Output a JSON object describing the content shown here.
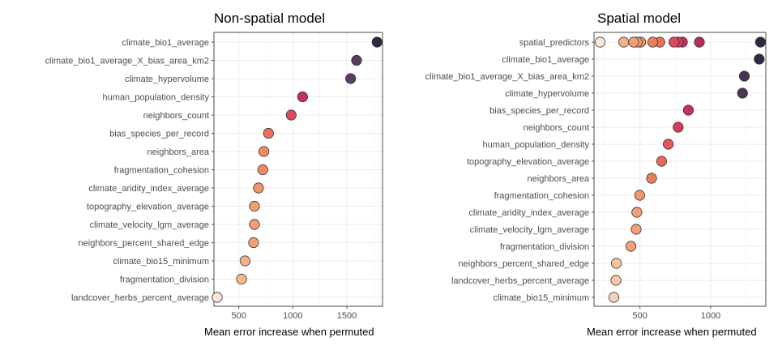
{
  "chart_data": [
    {
      "type": "scatter",
      "title": "Non-spatial model",
      "xlabel": "Mean error increase when permuted",
      "xlim": [
        270,
        1830
      ],
      "xticks": [
        500,
        1000,
        1500
      ],
      "grid": true,
      "legend": "none",
      "categories": [
        "climate_bio1_average",
        "climate_bio1_average_X_bias_area_km2",
        "climate_hypervolume",
        "human_population_density",
        "neighbors_count",
        "bias_species_per_record",
        "neighbors_area",
        "fragmentation_cohesion",
        "climate_aridity_index_average",
        "topography_elevation_average",
        "climate_velocity_lgm_average",
        "neighbors_percent_shared_edge",
        "climate_bio15_minimum",
        "fragmentation_division",
        "landcover_herbs_percent_average"
      ],
      "points": [
        {
          "y": "climate_bio1_average",
          "x": 1780,
          "color": "#2b2a3f"
        },
        {
          "y": "climate_bio1_average_X_bias_area_km2",
          "x": 1590,
          "color": "#583d63"
        },
        {
          "y": "climate_hypervolume",
          "x": 1535,
          "color": "#5a3d66"
        },
        {
          "y": "human_population_density",
          "x": 1090,
          "color": "#c4305a"
        },
        {
          "y": "neighbors_count",
          "x": 985,
          "color": "#dd4a5c"
        },
        {
          "y": "bias_species_per_record",
          "x": 775,
          "color": "#ea7257"
        },
        {
          "y": "neighbors_area",
          "x": 732,
          "color": "#ef8a63"
        },
        {
          "y": "fragmentation_cohesion",
          "x": 722,
          "color": "#ef8a63"
        },
        {
          "y": "climate_aridity_index_average",
          "x": 682,
          "color": "#f0946a"
        },
        {
          "y": "topography_elevation_average",
          "x": 645,
          "color": "#f29e75"
        },
        {
          "y": "climate_velocity_lgm_average",
          "x": 645,
          "color": "#f29e75"
        },
        {
          "y": "neighbors_percent_shared_edge",
          "x": 637,
          "color": "#f2a077"
        },
        {
          "y": "climate_bio15_minimum",
          "x": 558,
          "color": "#f4b08a"
        },
        {
          "y": "fragmentation_division",
          "x": 525,
          "color": "#f5b890"
        },
        {
          "y": "landcover_herbs_percent_average",
          "x": 300,
          "color": "#fbe6d9"
        }
      ]
    },
    {
      "type": "scatter",
      "title": "Spatial model",
      "xlabel": "Mean error increase when permuted",
      "xlim": [
        175,
        1390
      ],
      "xticks": [
        500,
        1000
      ],
      "grid": true,
      "legend": "none",
      "categories": [
        "spatial_predictors",
        "climate_bio1_average",
        "climate_bio1_average_X_bias_area_km2",
        "climate_hypervolume",
        "bias_species_per_record",
        "neighbors_count",
        "human_population_density",
        "topography_elevation_average",
        "neighbors_area",
        "fragmentation_cohesion",
        "climate_aridity_index_average",
        "climate_velocity_lgm_average",
        "fragmentation_division",
        "neighbors_percent_shared_edge",
        "landcover_herbs_percent_average",
        "climate_bio15_minimum"
      ],
      "points": [
        {
          "y": "spatial_predictors",
          "x": 1352,
          "color": "#2b2a3f"
        },
        {
          "y": "spatial_predictors",
          "x": 920,
          "color": "#b42c5e"
        },
        {
          "y": "spatial_predictors",
          "x": 800,
          "color": "#c92f5b"
        },
        {
          "y": "spatial_predictors",
          "x": 770,
          "color": "#d43a5b"
        },
        {
          "y": "spatial_predictors",
          "x": 740,
          "color": "#dc475c"
        },
        {
          "y": "spatial_predictors",
          "x": 640,
          "color": "#ea7257"
        },
        {
          "y": "spatial_predictors",
          "x": 590,
          "color": "#ec7e5c"
        },
        {
          "y": "spatial_predictors",
          "x": 505,
          "color": "#f0946a"
        },
        {
          "y": "spatial_predictors",
          "x": 480,
          "color": "#f29e75"
        },
        {
          "y": "spatial_predictors",
          "x": 455,
          "color": "#f2a077"
        },
        {
          "y": "spatial_predictors",
          "x": 385,
          "color": "#f4b08a"
        },
        {
          "y": "spatial_predictors",
          "x": 218,
          "color": "#fbe6d9"
        },
        {
          "y": "climate_bio1_average",
          "x": 1343,
          "color": "#2b2a3f"
        },
        {
          "y": "climate_bio1_average_X_bias_area_km2",
          "x": 1238,
          "color": "#45334f"
        },
        {
          "y": "climate_hypervolume",
          "x": 1225,
          "color": "#4a3655"
        },
        {
          "y": "bias_species_per_record",
          "x": 842,
          "color": "#c4305a"
        },
        {
          "y": "neighbors_count",
          "x": 770,
          "color": "#d63c5b"
        },
        {
          "y": "human_population_density",
          "x": 700,
          "color": "#e05a5a"
        },
        {
          "y": "topography_elevation_average",
          "x": 653,
          "color": "#e86a56"
        },
        {
          "y": "neighbors_area",
          "x": 582,
          "color": "#ec7e5c"
        },
        {
          "y": "fragmentation_cohesion",
          "x": 498,
          "color": "#f0946a"
        },
        {
          "y": "climate_aridity_index_average",
          "x": 478,
          "color": "#f29e75"
        },
        {
          "y": "climate_velocity_lgm_average",
          "x": 473,
          "color": "#f29e75"
        },
        {
          "y": "fragmentation_division",
          "x": 436,
          "color": "#f2a077"
        },
        {
          "y": "neighbors_percent_shared_edge",
          "x": 333,
          "color": "#f6c3a5"
        },
        {
          "y": "landcover_herbs_percent_average",
          "x": 330,
          "color": "#f7c8ab"
        },
        {
          "y": "climate_bio15_minimum",
          "x": 315,
          "color": "#f8d0b6"
        }
      ]
    }
  ]
}
